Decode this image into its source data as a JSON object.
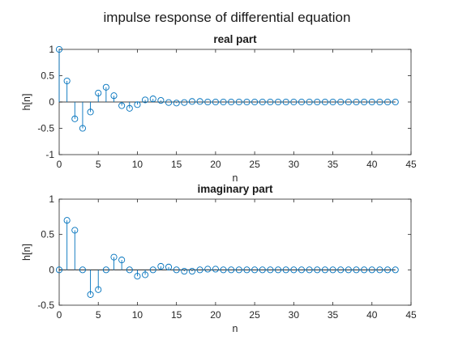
{
  "figure": {
    "title": "impulse response of differential equation"
  },
  "chart_data": [
    {
      "type": "stem",
      "title": "real part",
      "xlabel": "n",
      "ylabel": "h[n]",
      "xlim": [
        0,
        45
      ],
      "ylim": [
        -1,
        1
      ],
      "xticks": [
        0,
        5,
        10,
        15,
        20,
        25,
        30,
        35,
        40,
        45
      ],
      "yticks": [
        -1,
        -0.5,
        0,
        0.5,
        1
      ],
      "ytick_labels": [
        "-1",
        "-0.5",
        "0",
        "0.5",
        "1"
      ],
      "grid": false,
      "color": "#0072BD",
      "x": [
        0,
        1,
        2,
        3,
        4,
        5,
        6,
        7,
        8,
        9,
        10,
        11,
        12,
        13,
        14,
        15,
        16,
        17,
        18,
        19,
        20,
        21,
        22,
        23,
        24,
        25,
        26,
        27,
        28,
        29,
        30,
        31,
        32,
        33,
        34,
        35,
        36,
        37,
        38,
        39,
        40,
        41,
        42,
        43
      ],
      "y": [
        1.0,
        0.4,
        -0.32,
        -0.5,
        -0.19,
        0.17,
        0.28,
        0.12,
        -0.07,
        -0.12,
        -0.05,
        0.04,
        0.06,
        0.03,
        -0.01,
        -0.02,
        -0.01,
        0.01,
        0.01,
        0,
        0,
        0,
        0,
        0,
        0,
        0,
        0,
        0,
        0,
        0,
        0,
        0,
        0,
        0,
        0,
        0,
        0,
        0,
        0,
        0,
        0,
        0,
        0,
        0
      ]
    },
    {
      "type": "stem",
      "title": "imaginary part",
      "xlabel": "n",
      "ylabel": "h[n]",
      "xlim": [
        0,
        45
      ],
      "ylim": [
        -0.5,
        1
      ],
      "xticks": [
        0,
        5,
        10,
        15,
        20,
        25,
        30,
        35,
        40,
        45
      ],
      "yticks": [
        -0.5,
        0,
        0.5,
        1
      ],
      "ytick_labels": [
        "-0.5",
        "0",
        "0.5",
        "1"
      ],
      "grid": false,
      "color": "#0072BD",
      "x": [
        0,
        1,
        2,
        3,
        4,
        5,
        6,
        7,
        8,
        9,
        10,
        11,
        12,
        13,
        14,
        15,
        16,
        17,
        18,
        19,
        20,
        21,
        22,
        23,
        24,
        25,
        26,
        27,
        28,
        29,
        30,
        31,
        32,
        33,
        34,
        35,
        36,
        37,
        38,
        39,
        40,
        41,
        42,
        43
      ],
      "y": [
        0,
        0.7,
        0.56,
        0,
        -0.35,
        -0.28,
        0,
        0.18,
        0.14,
        0,
        -0.09,
        -0.07,
        0,
        0.05,
        0.04,
        0,
        -0.02,
        -0.02,
        0,
        0.01,
        0.01,
        0,
        0,
        0,
        0,
        0,
        0,
        0,
        0,
        0,
        0,
        0,
        0,
        0,
        0,
        0,
        0,
        0,
        0,
        0,
        0,
        0,
        0,
        0
      ]
    }
  ]
}
